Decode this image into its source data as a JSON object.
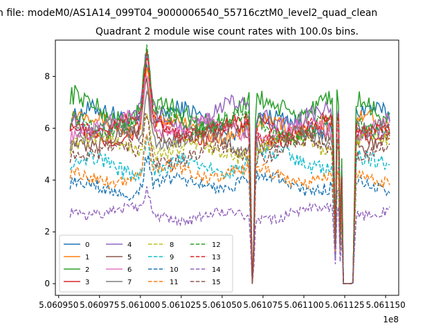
{
  "figure": {
    "suptitle": "n file: modeM0/AS1A14_099T04_9000006540_55716cztM0_level2_quad_clean",
    "x_offset_label": "1e8"
  },
  "chart_data": {
    "type": "line",
    "title": "Quadrant 2 module wise count rates with 100.0s bins.",
    "xlabel": "",
    "ylabel": "",
    "xlim": [
      5.060948,
      5.061158
    ],
    "ylim": [
      -0.45,
      9.4
    ],
    "x_start": 5.060957,
    "x_end": 5.0611525,
    "x_ticks": [
      5.06095,
      5.060975,
      5.061,
      5.061025,
      5.06105,
      5.061075,
      5.0611,
      5.061125,
      5.06115
    ],
    "x_tick_labels": [
      "5.060950",
      "5.060975",
      "5.061000",
      "5.061025",
      "5.061050",
      "5.061075",
      "5.061100",
      "5.061125",
      "5.061150"
    ],
    "y_ticks": [
      0,
      2,
      4,
      6,
      8
    ],
    "y_tick_labels": [
      "0",
      "2",
      "4",
      "6",
      "8"
    ],
    "grid": false,
    "legend_position": "lower-left",
    "gaps": [
      {
        "drop_start": 5.061067,
        "zero_start": 5.061068,
        "zero_end": 5.061069,
        "rise_end": 5.0610705
      },
      {
        "drop_start": 5.061118,
        "zero_start": 5.061119,
        "zero_end": 5.061119,
        "rise_end": 5.06112
      },
      {
        "drop_start": 5.0611215,
        "zero_start": 5.0611225,
        "zero_end": 5.0611225,
        "rise_end": 5.0611235
      },
      {
        "drop_start": 5.061123,
        "zero_start": 5.061124,
        "zero_end": 5.06113,
        "rise_end": 5.061132
      }
    ],
    "flare": {
      "center": 5.061004,
      "width": 2.5e-06
    },
    "series": [
      {
        "name": "0",
        "color": "#1f77b4",
        "dash": "solid",
        "mean": 6.3,
        "amp": 0.35,
        "flare": 2.2
      },
      {
        "name": "1",
        "color": "#ff7f0e",
        "dash": "solid",
        "mean": 6.1,
        "amp": 0.3,
        "flare": 2.0
      },
      {
        "name": "2",
        "color": "#2ca02c",
        "dash": "solid",
        "mean": 6.7,
        "amp": 0.4,
        "flare": 2.4
      },
      {
        "name": "3",
        "color": "#d62728",
        "dash": "solid",
        "mean": 5.9,
        "amp": 0.3,
        "flare": 2.8
      },
      {
        "name": "4",
        "color": "#9467bd",
        "dash": "solid",
        "mean": 6.4,
        "amp": 0.35,
        "flare": 2.2
      },
      {
        "name": "5",
        "color": "#8c564b",
        "dash": "solid",
        "mean": 5.7,
        "amp": 0.3,
        "flare": 1.8
      },
      {
        "name": "6",
        "color": "#e377c2",
        "dash": "solid",
        "mean": 6.0,
        "amp": 0.3,
        "flare": 2.0
      },
      {
        "name": "7",
        "color": "#7f7f7f",
        "dash": "solid",
        "mean": 5.6,
        "amp": 0.3,
        "flare": 1.8
      },
      {
        "name": "8",
        "color": "#bcbd22",
        "dash": "dashed",
        "mean": 5.3,
        "amp": 0.3,
        "flare": 1.8
      },
      {
        "name": "9",
        "color": "#17becf",
        "dash": "dashed",
        "mean": 4.6,
        "amp": 0.3,
        "flare": 1.5
      },
      {
        "name": "10",
        "color": "#1f77b4",
        "dash": "dashed",
        "mean": 3.8,
        "amp": 0.25,
        "flare": 1.3
      },
      {
        "name": "11",
        "color": "#ff7f0e",
        "dash": "dashed",
        "mean": 4.2,
        "amp": 0.25,
        "flare": 1.4
      },
      {
        "name": "12",
        "color": "#2ca02c",
        "dash": "dashed",
        "mean": 6.2,
        "amp": 0.35,
        "flare": 2.2
      },
      {
        "name": "13",
        "color": "#d62728",
        "dash": "dashed",
        "mean": 6.0,
        "amp": 0.3,
        "flare": 2.3
      },
      {
        "name": "14",
        "color": "#9467bd",
        "dash": "dashed",
        "mean": 2.7,
        "amp": 0.2,
        "flare": 0.8
      },
      {
        "name": "15",
        "color": "#8c564b",
        "dash": "dashed",
        "mean": 5.1,
        "amp": 0.3,
        "flare": 1.6
      }
    ]
  }
}
